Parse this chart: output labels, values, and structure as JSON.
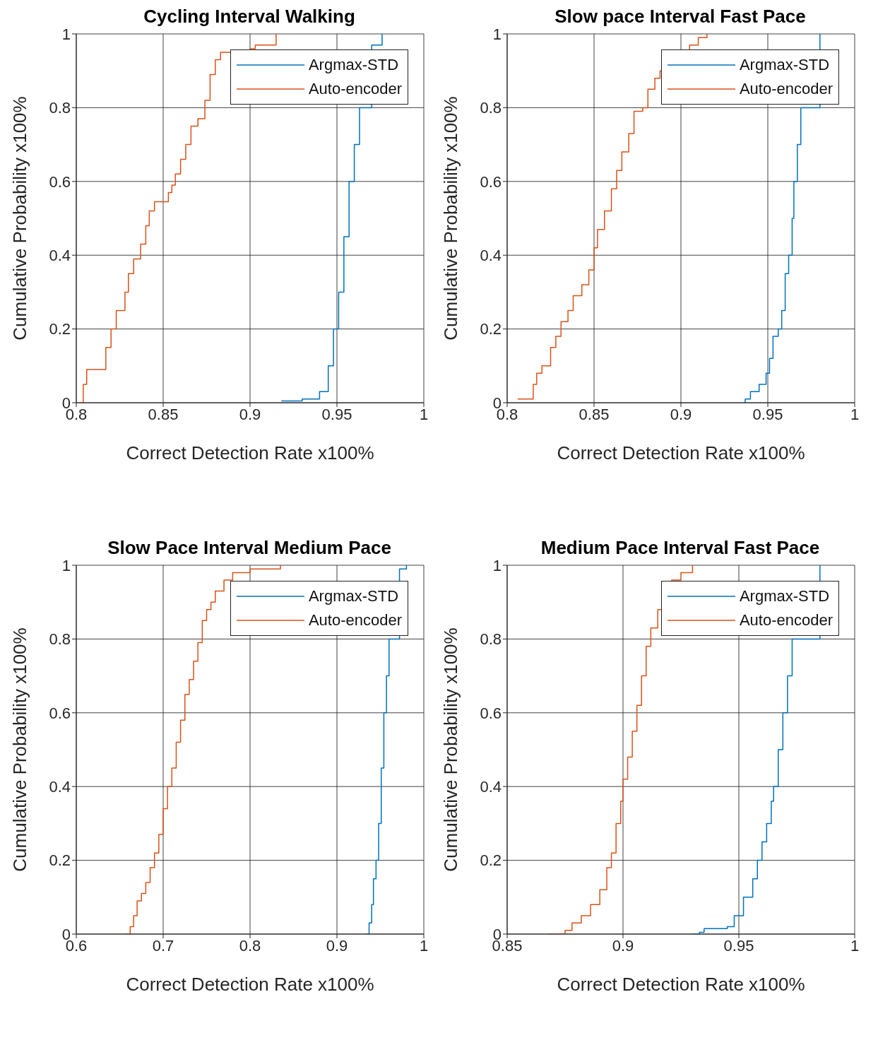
{
  "chart_data": [
    {
      "type": "step",
      "title": "Cycling Interval Walking",
      "xlabel": "Correct Detection Rate x100%",
      "ylabel": "Cumulative Probability x100%",
      "xlim": [
        0.8,
        1
      ],
      "xticks": [
        0.8,
        0.85,
        0.9,
        0.95,
        1
      ],
      "ylim": [
        0,
        1
      ],
      "yticks": [
        0,
        0.2,
        0.4,
        0.6,
        0.8,
        1
      ],
      "grid": true,
      "legend": "top right",
      "series": [
        {
          "name": "Argmax-STD",
          "color": "#0072bd",
          "x": [
            0.918,
            0.93,
            0.94,
            0.945,
            0.948,
            0.951,
            0.954,
            0.957,
            0.96,
            0.963,
            0.965,
            0.97,
            0.976
          ],
          "values": [
            0.005,
            0.01,
            0.03,
            0.1,
            0.2,
            0.3,
            0.45,
            0.6,
            0.7,
            0.8,
            null,
            0.97,
            1
          ]
        },
        {
          "name": "Auto-encoder",
          "color": "#d95319",
          "x": [
            0.802,
            0.804,
            0.806,
            0.815,
            0.817,
            0.82,
            0.823,
            0.828,
            0.83,
            0.833,
            0.837,
            0.84,
            0.842,
            0.845,
            0.853,
            0.855,
            0.857,
            0.86,
            0.863,
            0.866,
            0.87,
            0.874,
            0.877,
            0.88,
            0.883,
            0.9,
            0.903,
            0.915
          ],
          "values": [
            0,
            0.05,
            0.09,
            0.09,
            0.15,
            0.2,
            0.25,
            0.3,
            0.35,
            0.39,
            0.43,
            0.48,
            0.52,
            0.545,
            0.57,
            0.59,
            0.62,
            0.66,
            0.7,
            0.75,
            0.77,
            0.82,
            0.89,
            0.93,
            0.95,
            0.96,
            0.97,
            1
          ]
        }
      ]
    },
    {
      "type": "step",
      "title": "Slow pace Interval Fast Pace",
      "xlabel": "Correct Detection Rate x100%",
      "ylabel": "Cumulative Probability x100%",
      "xlim": [
        0.8,
        1
      ],
      "xticks": [
        0.8,
        0.85,
        0.9,
        0.95,
        1
      ],
      "ylim": [
        0,
        1
      ],
      "yticks": [
        0,
        0.2,
        0.4,
        0.6,
        0.8,
        1
      ],
      "grid": true,
      "legend": "top right",
      "series": [
        {
          "name": "Argmax-STD",
          "color": "#0072bd",
          "x": [
            0.936,
            0.937,
            0.94,
            0.945,
            0.949,
            0.951,
            0.953,
            0.956,
            0.958,
            0.96,
            0.962,
            0.964,
            0.965,
            0.967,
            0.969,
            0.972,
            0.975,
            0.98
          ],
          "values": [
            0,
            0.01,
            0.03,
            0.05,
            0.08,
            0.12,
            0.18,
            0.2,
            0.25,
            0.35,
            0.4,
            0.5,
            0.6,
            0.7,
            0.8,
            null,
            null,
            1
          ]
        },
        {
          "name": "Auto-encoder",
          "color": "#d95319",
          "x": [
            0.806,
            0.813,
            0.815,
            0.817,
            0.82,
            0.825,
            0.828,
            0.831,
            0.835,
            0.838,
            0.843,
            0.847,
            0.85,
            0.852,
            0.856,
            0.86,
            0.863,
            0.866,
            0.87,
            0.873,
            0.878,
            0.881,
            0.885,
            0.888,
            0.893,
            0.9,
            0.905,
            0.91,
            0.915
          ],
          "values": [
            0.01,
            0.01,
            0.05,
            0.08,
            0.1,
            0.15,
            0.18,
            0.22,
            0.25,
            0.29,
            0.32,
            0.36,
            0.42,
            0.47,
            0.52,
            0.58,
            0.63,
            0.68,
            0.73,
            0.79,
            0.8,
            0.85,
            0.88,
            0.9,
            null,
            null,
            0.97,
            0.99,
            1
          ]
        }
      ]
    },
    {
      "type": "step",
      "title": "Slow Pace Interval Medium Pace",
      "xlabel": "Correct Detection Rate x100%",
      "ylabel": "Cumulative Probability x100%",
      "xlim": [
        0.6,
        1
      ],
      "xticks": [
        0.6,
        0.7,
        0.8,
        0.9,
        1
      ],
      "ylim": [
        0,
        1
      ],
      "yticks": [
        0,
        0.2,
        0.4,
        0.6,
        0.8,
        1
      ],
      "grid": true,
      "legend": "top right",
      "series": [
        {
          "name": "Argmax-STD",
          "color": "#0072bd",
          "x": [
            0.934,
            0.937,
            0.94,
            0.942,
            0.945,
            0.948,
            0.951,
            0.954,
            0.957,
            0.96,
            0.963,
            0.966,
            0.972,
            0.98
          ],
          "values": [
            0,
            0.03,
            0.08,
            0.15,
            0.2,
            0.3,
            0.45,
            0.6,
            0.7,
            0.8,
            null,
            null,
            0.99,
            1
          ]
        },
        {
          "name": "Auto-encoder",
          "color": "#d95319",
          "x": [
            0.657,
            0.662,
            0.666,
            0.67,
            0.675,
            0.68,
            0.685,
            0.69,
            0.695,
            0.7,
            0.705,
            0.71,
            0.715,
            0.72,
            0.725,
            0.73,
            0.735,
            0.74,
            0.745,
            0.75,
            0.755,
            0.76,
            0.77,
            0.78,
            0.8,
            0.835
          ],
          "values": [
            0,
            0.02,
            0.05,
            0.09,
            0.11,
            0.14,
            0.18,
            0.22,
            0.27,
            0.34,
            0.4,
            0.45,
            0.52,
            0.58,
            0.65,
            0.69,
            0.74,
            0.79,
            0.85,
            0.88,
            0.9,
            0.93,
            0.96,
            0.98,
            0.99,
            1
          ]
        }
      ]
    },
    {
      "type": "step",
      "title": "Medium Pace Interval Fast Pace",
      "xlabel": "Correct Detection Rate x100%",
      "ylabel": "Cumulative Probability x100%",
      "xlim": [
        0.85,
        1
      ],
      "xticks": [
        0.85,
        0.9,
        0.95,
        1
      ],
      "ylim": [
        0,
        1
      ],
      "yticks": [
        0,
        0.2,
        0.4,
        0.6,
        0.8,
        1
      ],
      "grid": true,
      "legend": "top right",
      "series": [
        {
          "name": "Argmax-STD",
          "color": "#0072bd",
          "x": [
            0.93,
            0.933,
            0.935,
            0.945,
            0.948,
            0.952,
            0.956,
            0.958,
            0.96,
            0.962,
            0.964,
            0.965,
            0.967,
            0.969,
            0.971,
            0.973,
            0.976,
            0.98,
            0.985
          ],
          "values": [
            0,
            0.005,
            0.015,
            0.02,
            0.05,
            0.1,
            0.15,
            0.2,
            0.25,
            0.3,
            0.36,
            0.4,
            0.5,
            0.6,
            0.7,
            0.8,
            null,
            null,
            1
          ]
        },
        {
          "name": "Auto-encoder",
          "color": "#d95319",
          "x": [
            0.868,
            0.875,
            0.878,
            0.882,
            0.886,
            0.89,
            0.893,
            0.895,
            0.897,
            0.899,
            0.9,
            0.902,
            0.904,
            0.906,
            0.908,
            0.91,
            0.912,
            0.915,
            0.918,
            0.921,
            0.925,
            0.93
          ],
          "values": [
            0,
            0.01,
            0.03,
            0.05,
            0.08,
            0.12,
            0.18,
            0.22,
            0.3,
            0.36,
            0.42,
            0.48,
            0.55,
            0.62,
            0.7,
            0.78,
            0.83,
            0.88,
            null,
            0.96,
            0.98,
            1
          ]
        }
      ]
    }
  ]
}
